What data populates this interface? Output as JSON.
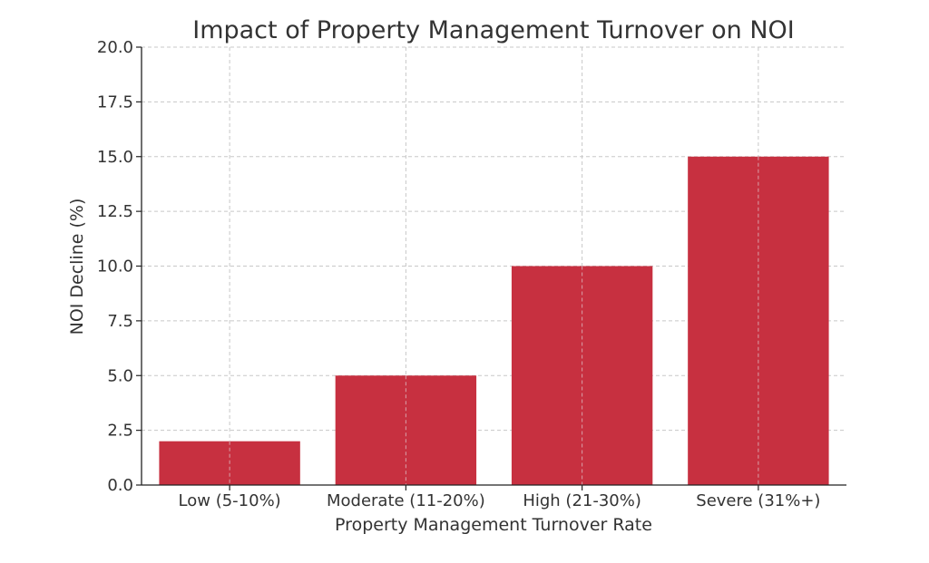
{
  "chart_data": {
    "type": "bar",
    "title": "Impact of Property Management Turnover on NOI",
    "xlabel": "Property Management Turnover Rate",
    "ylabel": "NOI Decline (%)",
    "categories": [
      "Low (5-10%)",
      "Moderate (11-20%)",
      "High (21-30%)",
      "Severe (31%+)"
    ],
    "values": [
      2,
      5,
      10,
      15
    ],
    "ylim": [
      0,
      20
    ],
    "yticks": [
      0,
      2.5,
      5,
      7.5,
      10,
      12.5,
      15,
      17.5,
      20
    ],
    "ytick_labels": [
      "0.0",
      "2.5",
      "5.0",
      "7.5",
      "10.0",
      "12.5",
      "15.0",
      "17.5",
      "20.0"
    ],
    "grid": true,
    "bar_color": "#c73040",
    "legend": null
  }
}
